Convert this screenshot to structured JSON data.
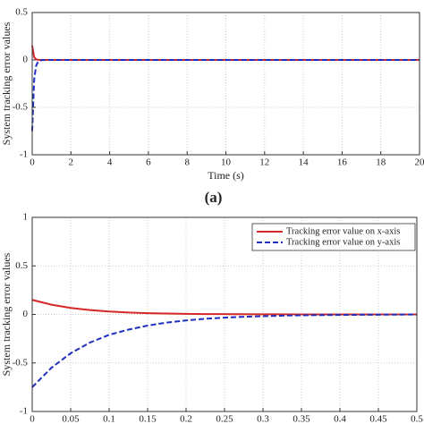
{
  "chart_data": [
    {
      "type": "line",
      "xlabel": "Time (s)",
      "ylabel": "System tracking error values",
      "caption": "(a)",
      "x": [
        0,
        0.1,
        0.2,
        0.3,
        0.5,
        1,
        2,
        4,
        6,
        8,
        10,
        12,
        14,
        16,
        18,
        20
      ],
      "series": [
        {
          "name": "Tracking error value on x-axis",
          "color": "#d62728",
          "dash": false,
          "values": [
            0.15,
            0.03,
            0.006,
            0.001,
            0,
            0,
            0,
            0,
            0,
            0,
            0,
            0,
            0,
            0,
            0,
            0
          ]
        },
        {
          "name": "Tracking error value on y-axis",
          "color": "#1f2fbf",
          "dash": true,
          "values": [
            -0.75,
            -0.21,
            -0.062,
            -0.018,
            -0.001,
            0,
            0,
            0,
            0,
            0,
            0,
            0,
            0,
            0,
            0,
            0
          ]
        }
      ],
      "xlim": [
        0,
        20
      ],
      "xticks": [
        0,
        2,
        4,
        6,
        8,
        10,
        12,
        14,
        16,
        18,
        20
      ],
      "ylim": [
        -1,
        0.5
      ],
      "yticks": [
        -1,
        -0.5,
        0,
        0.5
      ],
      "grid": true,
      "legend": false
    },
    {
      "type": "line",
      "ylabel": "System tracking error values",
      "x": [
        0,
        0.025,
        0.05,
        0.075,
        0.1,
        0.125,
        0.15,
        0.175,
        0.2,
        0.225,
        0.25,
        0.275,
        0.3,
        0.325,
        0.35,
        0.375,
        0.4,
        0.425,
        0.45,
        0.475,
        0.5
      ],
      "series": [
        {
          "name": "Tracking error value on x-axis",
          "color": "#d62728",
          "dash": false,
          "values": [
            0.15,
            0.1,
            0.067,
            0.045,
            0.03,
            0.02,
            0.013,
            0.009,
            0.006,
            0.004,
            0.003,
            0.002,
            0.001,
            0.001,
            0,
            0,
            0,
            0,
            0,
            0,
            0
          ]
        },
        {
          "name": "Tracking error value on y-axis",
          "color": "#1f2fbf",
          "dash": true,
          "values": [
            -0.75,
            -0.55,
            -0.4,
            -0.29,
            -0.21,
            -0.157,
            -0.115,
            -0.084,
            -0.062,
            -0.045,
            -0.033,
            -0.024,
            -0.018,
            -0.013,
            -0.009,
            -0.007,
            -0.005,
            -0.004,
            -0.003,
            -0.002,
            -0.001
          ]
        }
      ],
      "xlim": [
        0,
        0.5
      ],
      "xticks": [
        0,
        0.05,
        0.1,
        0.15,
        0.2,
        0.25,
        0.3,
        0.35,
        0.4,
        0.45,
        0.5
      ],
      "ylim": [
        -1,
        1
      ],
      "yticks": [
        -1,
        -0.5,
        0,
        0.5,
        1
      ],
      "grid": true,
      "legend": "upper right"
    }
  ]
}
